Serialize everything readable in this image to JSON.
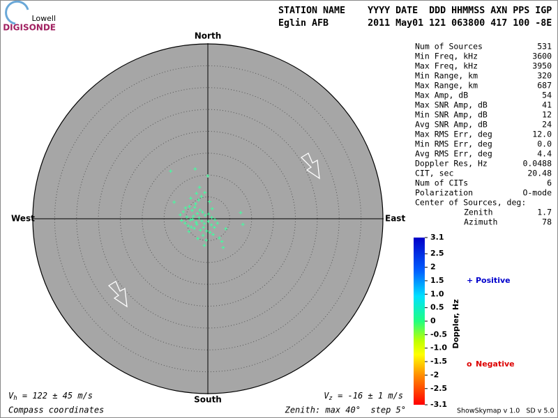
{
  "logo": {
    "top": "Lowell",
    "bottom": "DIGISONDE"
  },
  "header": {
    "line1": "STATION NAME    YYYY DATE  DDD HHMMSS AXN PPS IGP",
    "line2": "Eglin AFB       2011 May01 121 063800 417 100 -8E"
  },
  "stats": [
    [
      "Num of Sources",
      "531"
    ],
    [
      "Min Freq, kHz",
      "3600"
    ],
    [
      "Max Freq, kHz",
      "3950"
    ],
    [
      "Min Range, km",
      "320"
    ],
    [
      "Max Range, km",
      "687"
    ],
    [
      "Max Amp, dB",
      "54"
    ],
    [
      "Max SNR Amp, dB",
      "41"
    ],
    [
      "Min SNR Amp, dB",
      "12"
    ],
    [
      "Avg SNR Amp, dB",
      "24"
    ],
    [
      "Max RMS Err, deg",
      "12.0"
    ],
    [
      "Min RMS Err, deg",
      "0.0"
    ],
    [
      "Avg RMS Err, deg",
      "4.4"
    ],
    [
      "Doppler Res, Hz",
      "0.0488"
    ],
    [
      "CIT, sec",
      "20.48"
    ],
    [
      "Num of CITs",
      "6"
    ],
    [
      "Polarization",
      "O-mode"
    ]
  ],
  "center": {
    "title": "Center of Sources, deg:",
    "rows": [
      [
        "Zenith",
        "1.7"
      ],
      [
        "Azimuth",
        "78"
      ]
    ]
  },
  "footer": {
    "vh_symbol": "V",
    "vh_sub": "h",
    "vh_text": " = 122 ± 45 m/s",
    "vz_symbol": "V",
    "vz_sub": "z",
    "vz_text": " = -16 ± 1 m/s",
    "coords": "Compass coordinates",
    "zenith": "Zenith: max 40°  step 5°",
    "version": "ShowSkymap v 1.0   SD v 5.0"
  },
  "chart_data": {
    "type": "skymap",
    "directions": {
      "north": "North",
      "south": "South",
      "east": "East",
      "west": "West"
    },
    "rlim": [
      0,
      40
    ],
    "rticks": [
      5,
      10,
      15,
      20,
      25,
      30,
      35,
      40
    ],
    "color": "#40ffa0",
    "x": [
      -8.5,
      -2.9,
      0,
      7.5,
      8,
      3.5,
      -0.8,
      -7.7,
      -5.1,
      -4.2,
      -3.6,
      -3.0,
      -2.4,
      -1.8,
      -1.2,
      -0.6,
      0.2,
      0.9,
      1.6,
      -4.8,
      -4.0,
      -3.3,
      -2.7,
      -2.0,
      -1.4,
      -0.8,
      0.1,
      0.8,
      1.5,
      -5.2,
      -4.5,
      -3.8,
      -3.1,
      -2.5,
      -1.7,
      -1.0,
      -0.3,
      0.5,
      -4.3,
      -3.5,
      -2.8,
      -2.1,
      -1.5,
      -0.7,
      0.4,
      1.2,
      -6.3,
      -6.0,
      2.6,
      3.2,
      -1.9,
      -2.6,
      -3.9,
      4.1,
      2.2,
      -1.1,
      -2.3,
      -0.4,
      1.0,
      -5.6
    ],
    "y": [
      10.9,
      11.4,
      9.8,
      1.4,
      -1.3,
      -6.6,
      -6.1,
      3.8,
      2.5,
      2.8,
      1.9,
      2.6,
      1.2,
      2.0,
      1.5,
      0.8,
      1.1,
      0.3,
      -0.2,
      0.4,
      -0.3,
      0.6,
      -0.8,
      0.2,
      -0.5,
      -1.1,
      -0.6,
      -1.4,
      -2.0,
      -1.0,
      -1.6,
      -1.9,
      -2.2,
      -1.3,
      -2.6,
      -2.0,
      -2.8,
      -3.1,
      -2.9,
      -0.1,
      3.4,
      4.3,
      5.1,
      6.0,
      3.9,
      -3.6,
      0.9,
      -0.4,
      -4.4,
      -5.2,
      7.2,
      5.8,
      4.7,
      -2.3,
      -1.0,
      -3.8,
      -4.5,
      -4.9,
      2.3,
      1.6
    ],
    "colorbar": {
      "label": "Doppler, Hz",
      "lim": [
        -3.1,
        3.1
      ],
      "ticks": [
        3.1,
        2.5,
        2,
        1.5,
        {
          "value": 1,
          "label": "1.0"
        },
        0.5,
        0,
        -0.5,
        {
          "value": -1,
          "label": "-1.0"
        },
        -1.5,
        -2,
        -2.5,
        -3.1
      ]
    },
    "legend": [
      {
        "symbol": "+",
        "name": "Positive",
        "color": "#0000cc"
      },
      {
        "symbol": "o",
        "name": "Negative",
        "color": "#dd0000"
      }
    ]
  }
}
